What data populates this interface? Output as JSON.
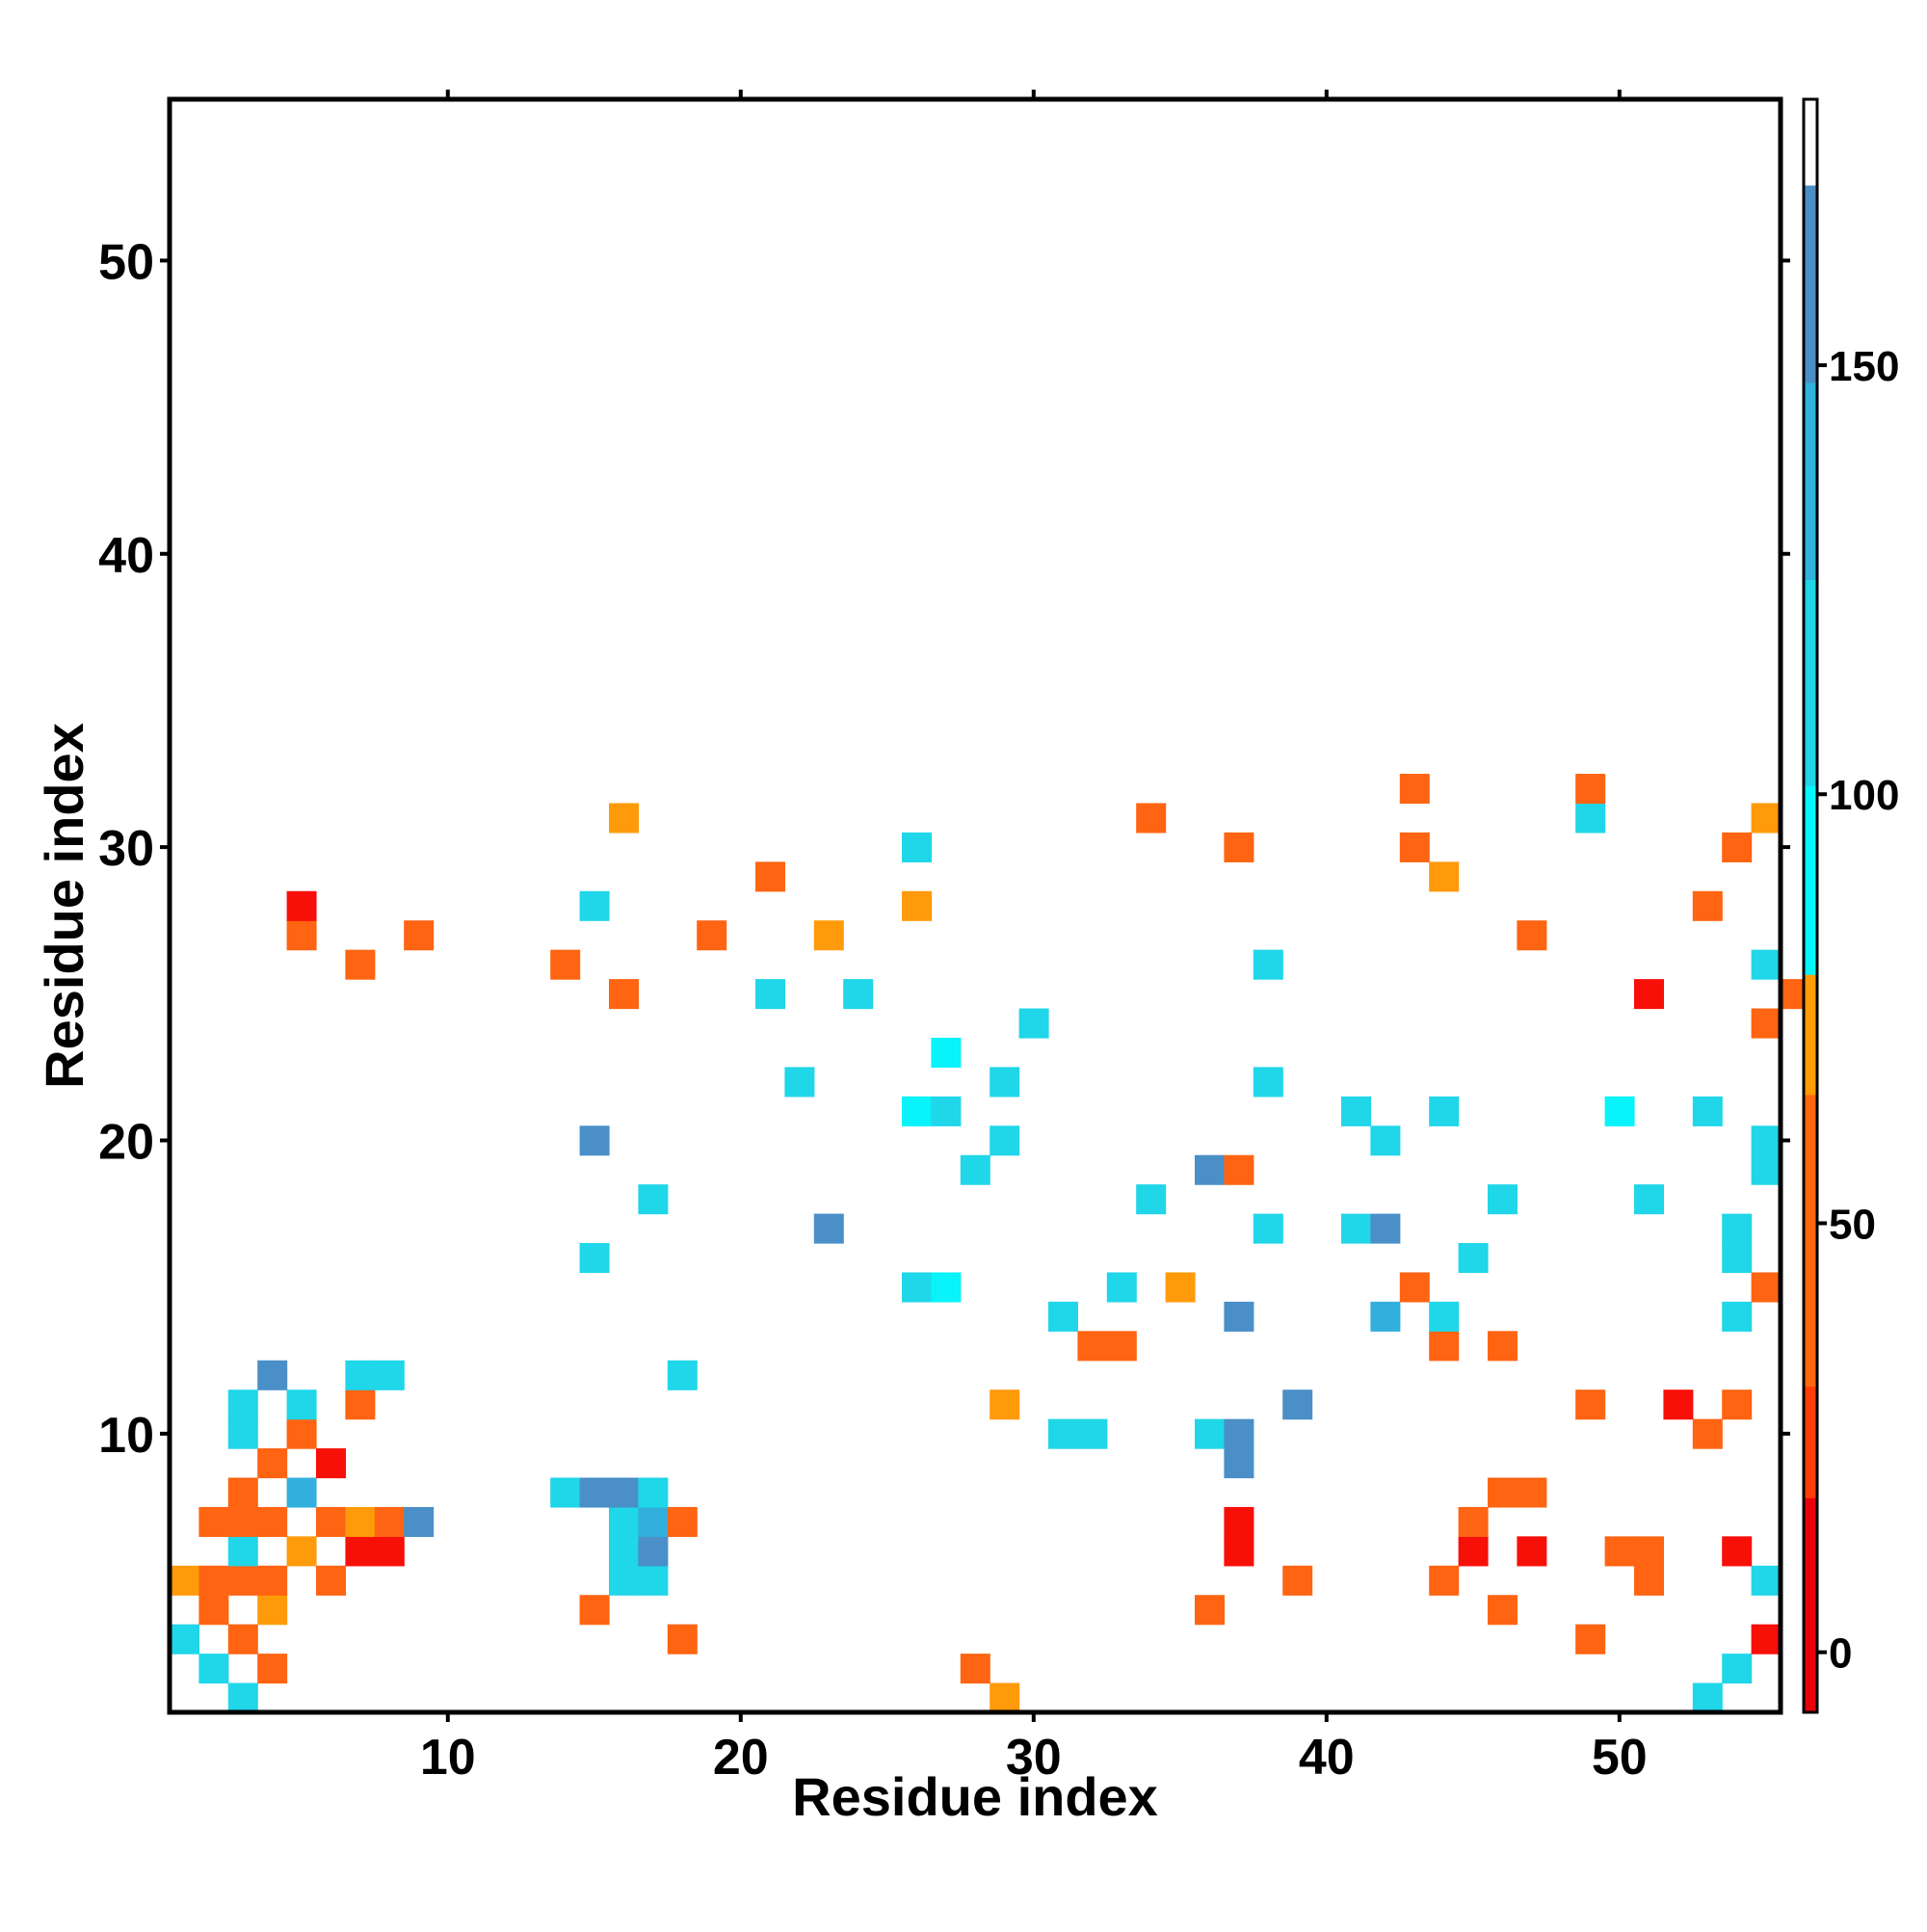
{
  "chart_data": {
    "type": "heatmap",
    "title": "",
    "xlabel": "Residue index",
    "ylabel": "Residue index",
    "x_ticks": [
      10,
      20,
      30,
      40,
      50
    ],
    "y_ticks": [
      10,
      20,
      30,
      40,
      50
    ],
    "xlim": [
      0.5,
      55.5
    ],
    "ylim": [
      0.5,
      55.5
    ],
    "grid": false,
    "colorbar": {
      "ticks": [
        0,
        50,
        100,
        150
      ],
      "range": [
        -7,
        181
      ],
      "segments": [
        {
          "from": -7,
          "to": 18,
          "color": "#e8000b"
        },
        {
          "from": 18,
          "to": 31,
          "color": "#ff3c0a"
        },
        {
          "from": 31,
          "to": 65,
          "color": "#fe6610"
        },
        {
          "from": 65,
          "to": 79,
          "color": "#ff9c08"
        },
        {
          "from": 79,
          "to": 101,
          "color": "#08f5ff"
        },
        {
          "from": 101,
          "to": 125,
          "color": "#22d4e8"
        },
        {
          "from": 125,
          "to": 148,
          "color": "#2fb2dd"
        },
        {
          "from": 148,
          "to": 171,
          "color": "#4a8fc8"
        },
        {
          "from": 171,
          "to": 181,
          "color": "#ffffff"
        }
      ]
    },
    "colors": {
      "r": "#f71008",
      "o": "#fe6412",
      "a": "#ff9a0a",
      "c": "#08f3fa",
      "t": "#20d6e9",
      "m": "#33afdd",
      "b": "#4a8fc8"
    },
    "value_key": {
      "r": 15,
      "o": 45,
      "a": 70,
      "c": 95,
      "t": 115,
      "m": 135,
      "b": 160
    },
    "note": "",
    "cells": [
      [
        1,
        "..t.........................a.......................t.."
      ],
      [
        2,
        ".t.o.......................o.........................t."
      ],
      [
        3,
        "t.o..............o..............................o.....r"
      ],
      [
        4,
        ".o.a..........o....................o.........o........."
      ],
      [
        5,
        "aooo.o.........tt.....................o....o......o...t"
      ],
      [
        6,
        "..t.a.rr.......tb...................r.......r.r..oo..r."
      ],
      [
        7,
        ".ooo.oaob......tmo..................r.......o..........."
      ],
      [
        8,
        "..o.m........tbbt............................oo........."
      ],
      [
        9,
        "...o.r..............................b..................."
      ],
      [
        10,
        "..t.o.........................tt...tb...............o..."
      ],
      [
        11,
        "..t.t.o.....................a.........b.........o..r.o.."
      ],
      [
        12,
        "...b..tt.........t......................................."
      ],
      [
        13,
        "...............................oo..........o.o.........."
      ],
      [
        14,
        "..............................t.....b....m.t.........t.."
      ],
      [
        15,
        ".........................tc.....t.a.......o...........o."
      ],
      [
        16,
        "..............t.............................t........t.."
      ],
      [
        17,
        "......................b..............t..tb...........t.."
      ],
      [
        18,
        "................t................t...........t....t...."
      ],
      [
        19,
        "...........................t.......bo.................t."
      ],
      [
        20,
        "..............b.............t............t............t."
      ],
      [
        21,
        ".........................ct.............t..t.....c..t..."
      ],
      [
        22,
        ".....................t......t........t................."
      ],
      [
        23,
        "..........................c............................."
      ],
      [
        24,
        ".............................t........................o."
      ],
      [
        25,
        "...............o....t..t..........................r....o"
      ],
      [
        26,
        "......o......o.......................t................t."
      ],
      [
        27,
        "....o...o.........o...a.......................o........."
      ],
      [
        28,
        "....r.........t..........a..........................o.."
      ],
      [
        29,
        "....................o......................a..........."
      ],
      [
        30,
        ".........................t..........o.....o..........o."
      ],
      [
        31,
        "...............a.................o..............t.....a"
      ],
      [
        32,
        "..........................................o.....o......."
      ],
      [
        33,
        "........................................................"
      ],
      [
        34,
        "........................................................"
      ],
      [
        35,
        "........................................................"
      ],
      [
        36,
        "........................................................"
      ],
      [
        37,
        "........................................................"
      ],
      [
        38,
        "........................................................"
      ],
      [
        39,
        "........................................................"
      ],
      [
        40,
        "........................................................"
      ]
    ]
  }
}
